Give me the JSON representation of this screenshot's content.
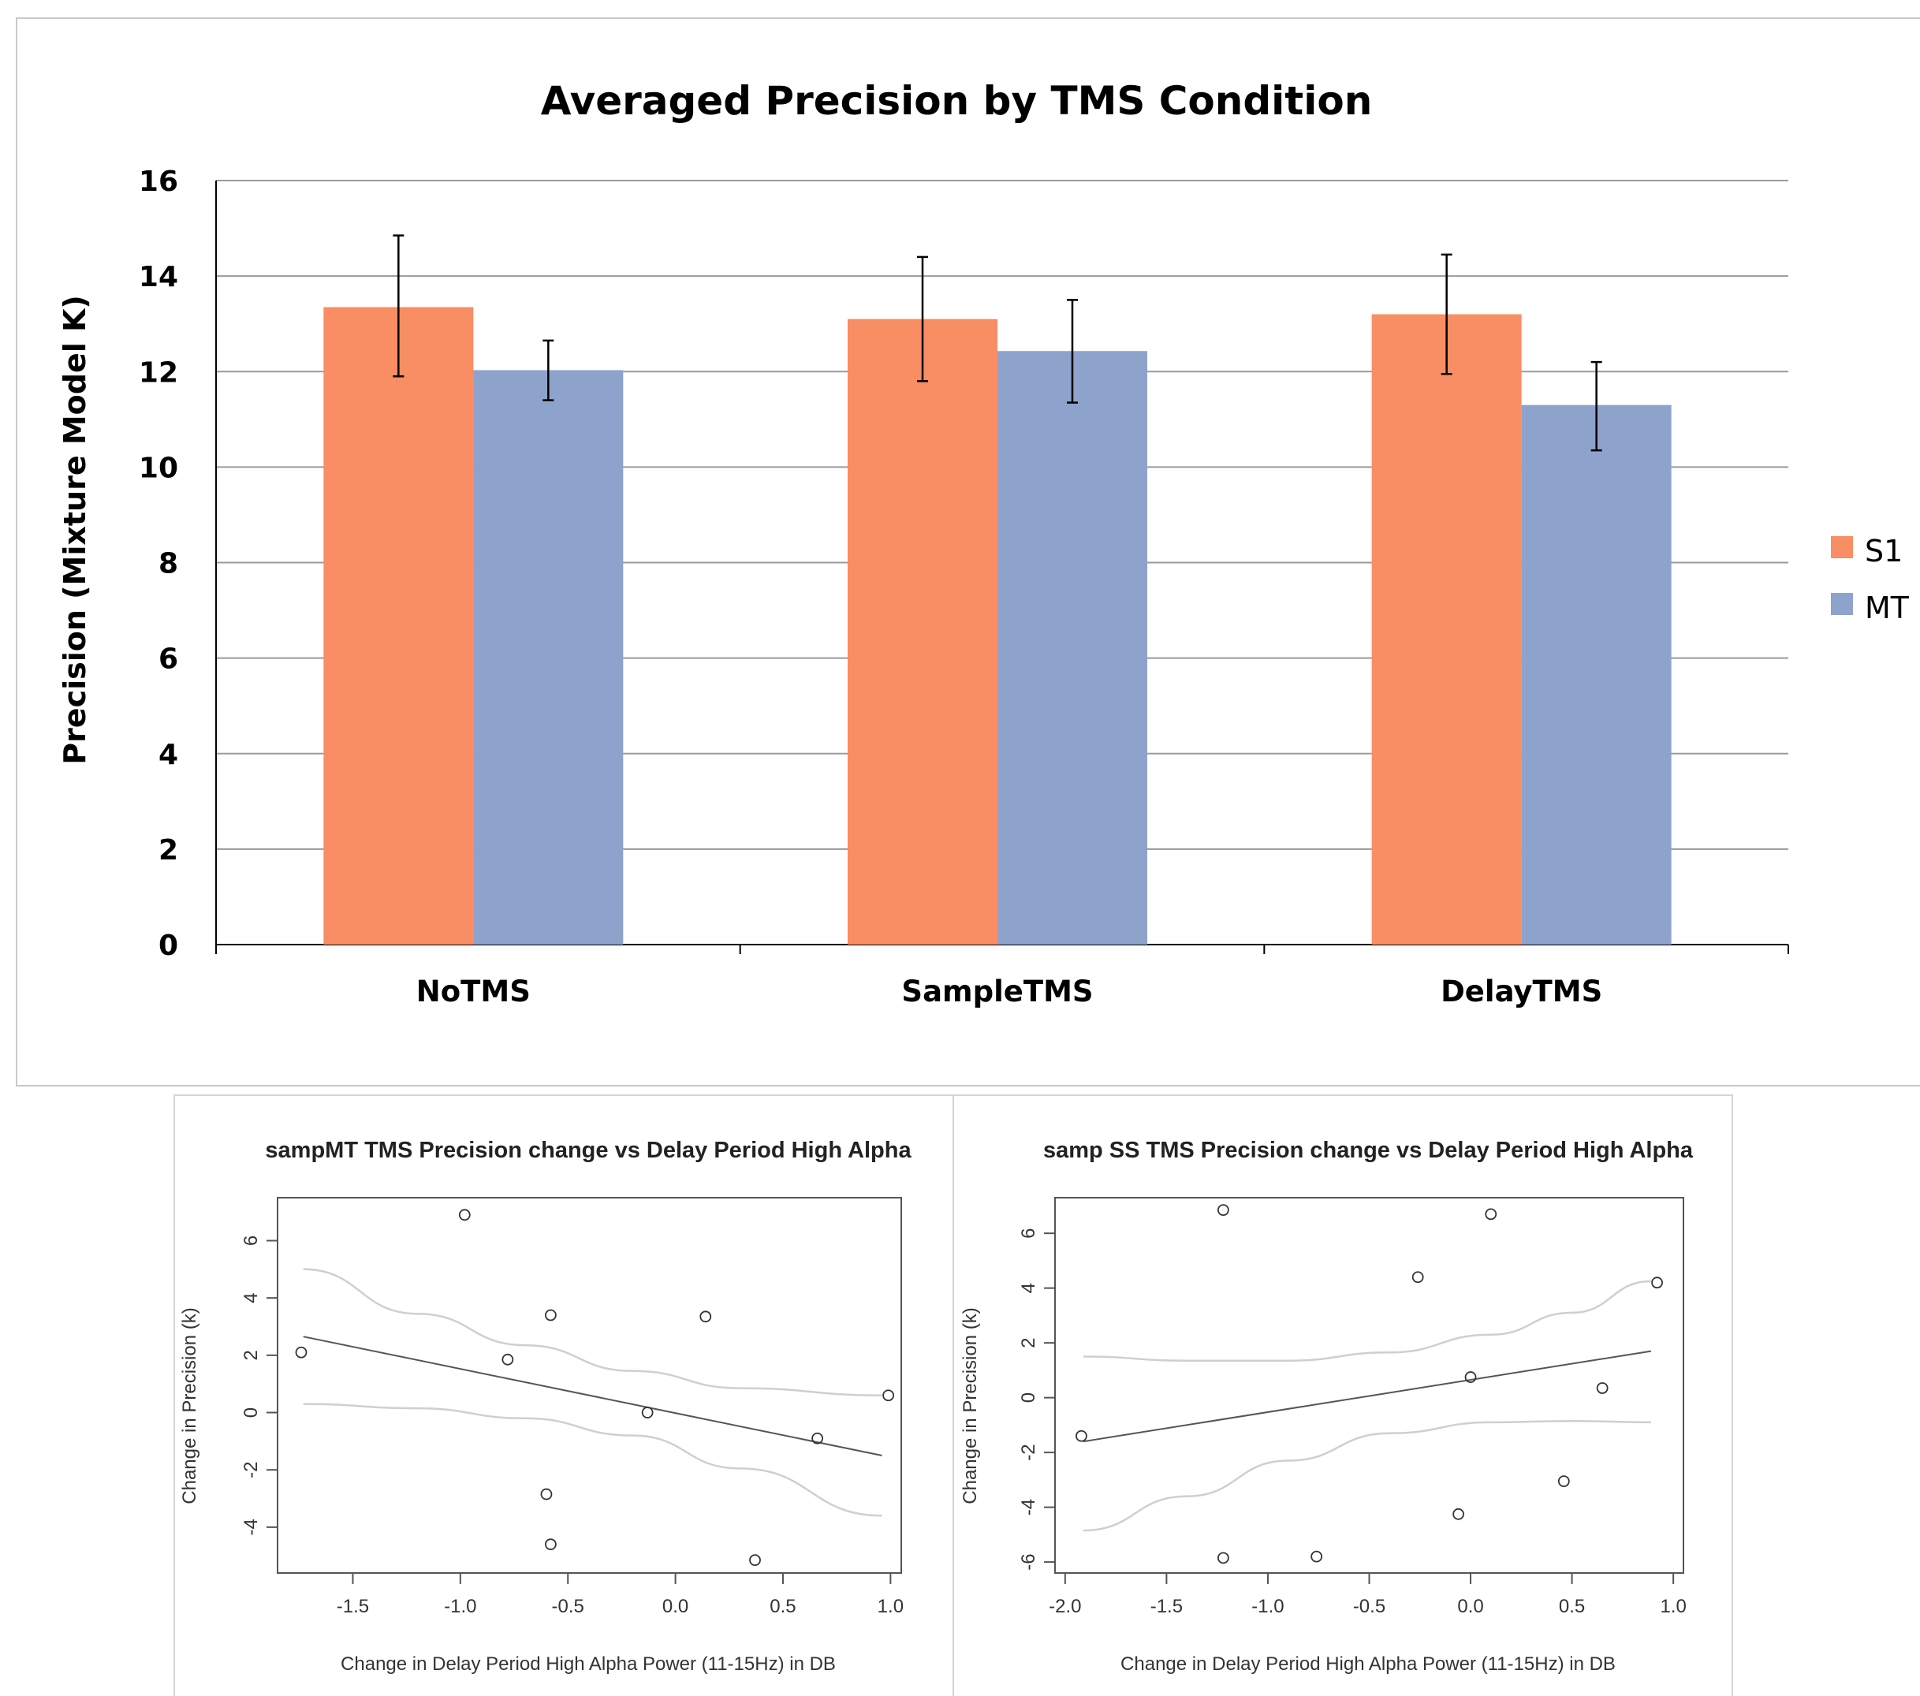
{
  "chart_data": [
    {
      "type": "bar",
      "title": "Averaged Precision by TMS Condition",
      "xlabel": "",
      "ylabel": "Precision (Mixture Model K)",
      "ylim": [
        0,
        16
      ],
      "yticks": [
        "0",
        "2",
        "4",
        "6",
        "8",
        "10",
        "12",
        "14",
        "16"
      ],
      "categories": [
        "NoTMS",
        "SampleTMS",
        "DelayTMS"
      ],
      "series": [
        {
          "name": "S1",
          "values": [
            13.35,
            13.1,
            13.2
          ],
          "err_low": [
            11.9,
            11.8,
            11.95
          ],
          "err_high": [
            14.85,
            14.4,
            14.45
          ]
        },
        {
          "name": "MT",
          "values": [
            12.03,
            12.43,
            11.3
          ],
          "err_low": [
            11.4,
            11.35,
            10.35
          ],
          "err_high": [
            12.65,
            13.5,
            12.2
          ]
        }
      ],
      "colors": {
        "S1": "#f98d63",
        "MT": "#8ea3cb",
        "grid": "#9a9a9a"
      },
      "grid": true,
      "legend": "right"
    },
    {
      "type": "scatter",
      "title": "sampMT TMS Precision change vs Delay Period High Alpha",
      "xlabel": "Change in Delay Period High Alpha Power (11-15Hz) in DB",
      "ylabel": "Change in Precision (k)",
      "xlim": [
        -1.85,
        1.05
      ],
      "ylim": [
        -5.6,
        7.5
      ],
      "xticks": [
        "-1.5",
        "-1.0",
        "-0.5",
        "0.0",
        "0.5",
        "1.0"
      ],
      "yticks": [
        "-4",
        "-2",
        "0",
        "2",
        "4",
        "6"
      ],
      "points": [
        {
          "x": -1.74,
          "y": 2.1
        },
        {
          "x": -0.98,
          "y": 6.9
        },
        {
          "x": -0.78,
          "y": 1.85
        },
        {
          "x": -0.58,
          "y": 3.4
        },
        {
          "x": -0.6,
          "y": -2.85
        },
        {
          "x": -0.58,
          "y": -4.6
        },
        {
          "x": -0.13,
          "y": 0.0
        },
        {
          "x": 0.14,
          "y": 3.35
        },
        {
          "x": 0.37,
          "y": -5.15
        },
        {
          "x": 0.66,
          "y": -0.9
        },
        {
          "x": 0.99,
          "y": 0.6
        }
      ],
      "fit": [
        {
          "x": -1.73,
          "y": 2.65
        },
        {
          "x": 0.96,
          "y": -1.5
        }
      ],
      "ci_upper": [
        {
          "x": -1.73,
          "y": 5.0
        },
        {
          "x": -1.2,
          "y": 3.45
        },
        {
          "x": -0.7,
          "y": 2.35
        },
        {
          "x": -0.2,
          "y": 1.45
        },
        {
          "x": 0.3,
          "y": 0.85
        },
        {
          "x": 0.96,
          "y": 0.6
        }
      ],
      "ci_lower": [
        {
          "x": -1.73,
          "y": 0.3
        },
        {
          "x": -1.2,
          "y": 0.15
        },
        {
          "x": -0.7,
          "y": -0.2
        },
        {
          "x": -0.2,
          "y": -0.8
        },
        {
          "x": 0.3,
          "y": -1.95
        },
        {
          "x": 0.96,
          "y": -3.6
        }
      ],
      "colors": {
        "point": "#333333",
        "fit": "#555555",
        "ci": "#cfcfcf",
        "frame": "#555555"
      }
    },
    {
      "type": "scatter",
      "title": "samp SS TMS Precision change vs Delay Period High Alpha",
      "xlabel": "Change in Delay Period High Alpha Power (11-15Hz) in DB",
      "ylabel": "Change in Precision (k)",
      "xlim": [
        -2.05,
        1.05
      ],
      "ylim": [
        -6.4,
        7.3
      ],
      "xticks": [
        "-2.0",
        "-1.5",
        "-1.0",
        "-0.5",
        "0.0",
        "0.5",
        "1.0"
      ],
      "yticks": [
        "-6",
        "-4",
        "-2",
        "0",
        "2",
        "4",
        "6"
      ],
      "points": [
        {
          "x": -1.92,
          "y": -1.4
        },
        {
          "x": -1.22,
          "y": 6.85
        },
        {
          "x": -1.22,
          "y": -5.85
        },
        {
          "x": -0.76,
          "y": -5.8
        },
        {
          "x": -0.26,
          "y": 4.4
        },
        {
          "x": -0.06,
          "y": -4.25
        },
        {
          "x": 0.0,
          "y": 0.75
        },
        {
          "x": 0.1,
          "y": 6.7
        },
        {
          "x": 0.46,
          "y": -3.05
        },
        {
          "x": 0.65,
          "y": 0.35
        },
        {
          "x": 0.92,
          "y": 4.2
        }
      ],
      "fit": [
        {
          "x": -1.91,
          "y": -1.6
        },
        {
          "x": 0.89,
          "y": 1.7
        }
      ],
      "ci_upper": [
        {
          "x": -1.91,
          "y": 1.5
        },
        {
          "x": -1.4,
          "y": 1.35
        },
        {
          "x": -0.9,
          "y": 1.35
        },
        {
          "x": -0.4,
          "y": 1.65
        },
        {
          "x": 0.1,
          "y": 2.3
        },
        {
          "x": 0.5,
          "y": 3.1
        },
        {
          "x": 0.89,
          "y": 4.25
        }
      ],
      "ci_lower": [
        {
          "x": -1.91,
          "y": -4.85
        },
        {
          "x": -1.4,
          "y": -3.6
        },
        {
          "x": -0.9,
          "y": -2.3
        },
        {
          "x": -0.4,
          "y": -1.3
        },
        {
          "x": 0.1,
          "y": -0.9
        },
        {
          "x": 0.5,
          "y": -0.85
        },
        {
          "x": 0.89,
          "y": -0.9
        }
      ],
      "colors": {
        "point": "#333333",
        "fit": "#555555",
        "ci": "#cfcfcf",
        "frame": "#555555"
      }
    }
  ]
}
